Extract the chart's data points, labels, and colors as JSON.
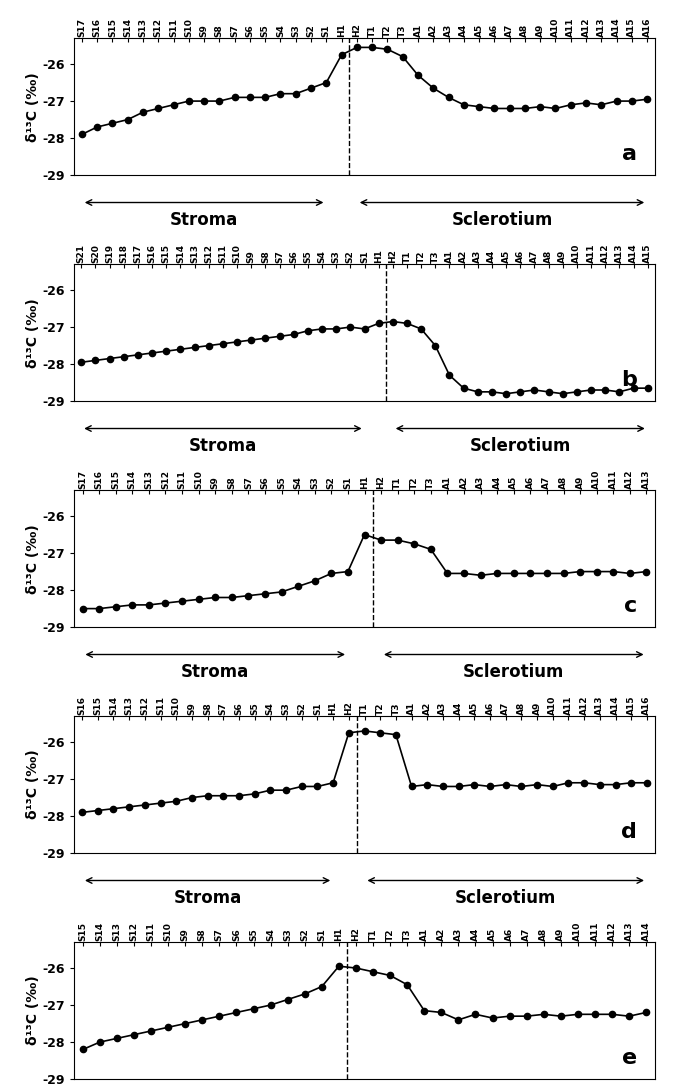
{
  "panels": [
    {
      "label": "a",
      "tick_labels": [
        "S17",
        "S16",
        "S15",
        "S14",
        "S13",
        "S12",
        "S11",
        "S10",
        "S9",
        "S8",
        "S7",
        "S6",
        "S5",
        "S4",
        "S3",
        "S2",
        "S1",
        "H1",
        "H2",
        "T1",
        "T2",
        "T3",
        "A1",
        "A2",
        "A3",
        "A4",
        "A5",
        "A6",
        "A7",
        "A8",
        "A9",
        "A10",
        "A11",
        "A12",
        "A13",
        "A14",
        "A15",
        "A16"
      ],
      "dashes_after": "H1",
      "stroma_end": "S1",
      "sclerotium_start": "H2",
      "values": [
        -27.9,
        -27.7,
        -27.6,
        -27.5,
        -27.3,
        -27.2,
        -27.1,
        -27.0,
        -27.0,
        -27.0,
        -26.9,
        -26.9,
        -26.9,
        -26.8,
        -26.8,
        -26.65,
        -26.5,
        -25.75,
        -25.55,
        -25.55,
        -25.6,
        -25.8,
        -26.3,
        -26.65,
        -26.9,
        -27.1,
        -27.15,
        -27.2,
        -27.2,
        -27.2,
        -27.15,
        -27.2,
        -27.1,
        -27.05,
        -27.1,
        -27.0,
        -27.0,
        -26.95
      ]
    },
    {
      "label": "b",
      "tick_labels": [
        "S21",
        "S20",
        "S19",
        "S18",
        "S17",
        "S16",
        "S15",
        "S14",
        "S13",
        "S12",
        "S11",
        "S10",
        "S9",
        "S8",
        "S7",
        "S6",
        "S5",
        "S4",
        "S3",
        "S2",
        "S1",
        "H1",
        "H2",
        "T1",
        "T2",
        "T3",
        "A1",
        "A2",
        "A3",
        "A4",
        "A5",
        "A6",
        "A7",
        "A8",
        "A9",
        "A10",
        "A11",
        "A12",
        "A13",
        "A14",
        "A15"
      ],
      "dashes_after": "H1",
      "stroma_end": "S1",
      "sclerotium_start": "H2",
      "values": [
        -27.95,
        -27.9,
        -27.85,
        -27.8,
        -27.75,
        -27.7,
        -27.65,
        -27.6,
        -27.55,
        -27.5,
        -27.45,
        -27.4,
        -27.35,
        -27.3,
        -27.25,
        -27.2,
        -27.1,
        -27.05,
        -27.05,
        -27.0,
        -27.05,
        -26.9,
        -26.85,
        -26.9,
        -27.05,
        -27.5,
        -28.3,
        -28.65,
        -28.75,
        -28.75,
        -28.8,
        -28.75,
        -28.7,
        -28.75,
        -28.8,
        -28.75,
        -28.7,
        -28.7,
        -28.75,
        -28.65,
        -28.65
      ]
    },
    {
      "label": "c",
      "tick_labels": [
        "S17",
        "S16",
        "S15",
        "S14",
        "S13",
        "S12",
        "S11",
        "S10",
        "S9",
        "S8",
        "S7",
        "S6",
        "S5",
        "S4",
        "S3",
        "S2",
        "S1",
        "H1",
        "H2",
        "T1",
        "T2",
        "T3",
        "A1",
        "A2",
        "A3",
        "A4",
        "A5",
        "A6",
        "A7",
        "A8",
        "A9",
        "A10",
        "A11",
        "A12",
        "A13"
      ],
      "dashes_after": "H1",
      "stroma_end": "S1",
      "sclerotium_start": "H2",
      "values": [
        -28.5,
        -28.5,
        -28.45,
        -28.4,
        -28.4,
        -28.35,
        -28.3,
        -28.25,
        -28.2,
        -28.2,
        -28.15,
        -28.1,
        -28.05,
        -27.9,
        -27.75,
        -27.55,
        -27.5,
        -26.5,
        -26.65,
        -26.65,
        -26.75,
        -26.9,
        -27.55,
        -27.55,
        -27.6,
        -27.55,
        -27.55,
        -27.55,
        -27.55,
        -27.55,
        -27.5,
        -27.5,
        -27.5,
        -27.55,
        -27.5
      ]
    },
    {
      "label": "d",
      "tick_labels": [
        "S16",
        "S15",
        "S14",
        "S13",
        "S12",
        "S11",
        "S10",
        "S9",
        "S8",
        "S7",
        "S6",
        "S5",
        "S4",
        "S3",
        "S2",
        "S1",
        "H1",
        "H2",
        "T1",
        "T2",
        "T3",
        "A1",
        "A2",
        "A3",
        "A4",
        "A5",
        "A6",
        "A7",
        "A8",
        "A9",
        "A10",
        "A11",
        "A12",
        "A13",
        "A14",
        "A15",
        "A16"
      ],
      "dashes_after": "H2",
      "stroma_end": "H1",
      "sclerotium_start": "T1",
      "values": [
        -27.9,
        -27.85,
        -27.8,
        -27.75,
        -27.7,
        -27.65,
        -27.6,
        -27.5,
        -27.45,
        -27.45,
        -27.45,
        -27.4,
        -27.3,
        -27.3,
        -27.2,
        -27.2,
        -27.1,
        -25.75,
        -25.7,
        -25.75,
        -25.8,
        -27.2,
        -27.15,
        -27.2,
        -27.2,
        -27.15,
        -27.2,
        -27.15,
        -27.2,
        -27.15,
        -27.2,
        -27.1,
        -27.1,
        -27.15,
        -27.15,
        -27.1,
        -27.1
      ]
    },
    {
      "label": "e",
      "tick_labels": [
        "S15",
        "S14",
        "S13",
        "S12",
        "S11",
        "S10",
        "S9",
        "S8",
        "S7",
        "S6",
        "S5",
        "S4",
        "S3",
        "S2",
        "S1",
        "H1",
        "H2",
        "T1",
        "T2",
        "T3",
        "A1",
        "A2",
        "A3",
        "A4",
        "A5",
        "A6",
        "A7",
        "A8",
        "A9",
        "A10",
        "A11",
        "A12",
        "A13",
        "A14"
      ],
      "dashes_after": "H1",
      "stroma_end": "S1",
      "sclerotium_start": "H2",
      "values": [
        -28.2,
        -28.0,
        -27.9,
        -27.8,
        -27.7,
        -27.6,
        -27.5,
        -27.4,
        -27.3,
        -27.2,
        -27.1,
        -27.0,
        -26.85,
        -26.7,
        -26.5,
        -25.95,
        -26.0,
        -26.1,
        -26.2,
        -26.45,
        -27.15,
        -27.2,
        -27.4,
        -27.25,
        -27.35,
        -27.3,
        -27.3,
        -27.25,
        -27.3,
        -27.25,
        -27.25,
        -27.25,
        -27.3,
        -27.2
      ]
    }
  ],
  "ylim": [
    -29,
    -25.3
  ],
  "yticks": [
    -29,
    -28,
    -27,
    -26
  ],
  "line_color": "black",
  "marker": "o",
  "markersize": 4.5,
  "linewidth": 1.2,
  "tick_fontsize": 6.5,
  "ylabel": "δ¹³C (‰)",
  "stroma_label": "Stroma",
  "sclerotium_label": "Sclerotium",
  "annotation_fontsize": 12,
  "label_fontsize": 16
}
